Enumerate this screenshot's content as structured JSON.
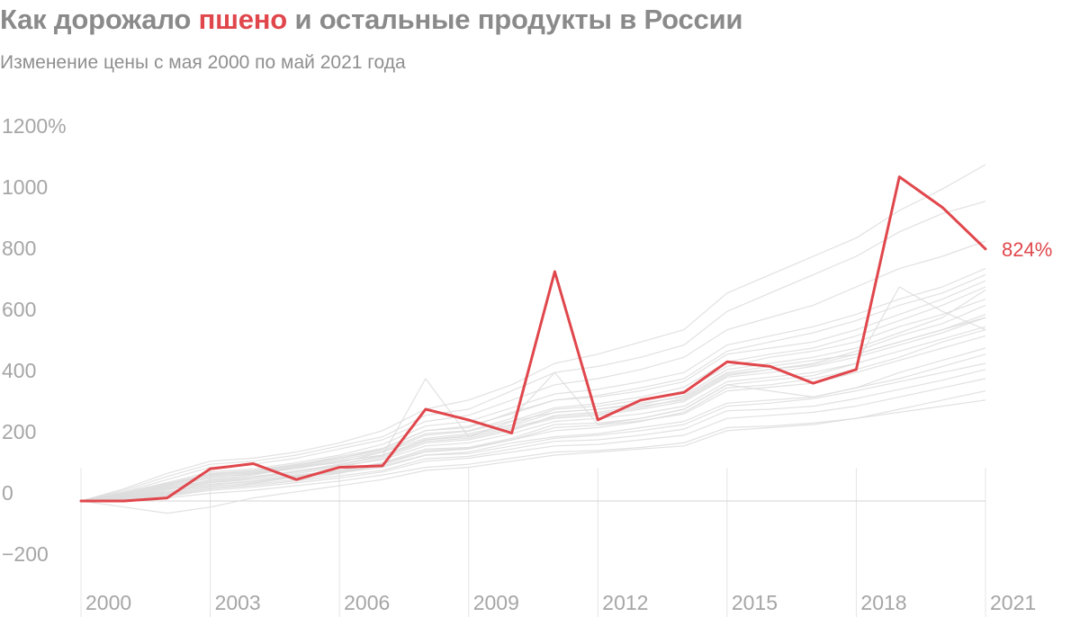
{
  "title": {
    "part1": "Как дорожало ",
    "highlight": "пшено",
    "part2": " и остальные продукты в России"
  },
  "subtitle": "Изменение цены с мая 2000 по май 2021 года",
  "colors": {
    "highlight": "#e0474c",
    "background_lines": "#dcdcdc",
    "axis_text": "#a6a6a6",
    "title": "#8a8a8a",
    "gridlines": "#e4e4e4"
  },
  "chart_data": {
    "type": "line",
    "title": "Как дорожало пшено и остальные продукты в России",
    "subtitle": "Изменение цены с мая 2000 по май 2021 года",
    "xlabel": "",
    "ylabel": "",
    "x": [
      2000,
      2001,
      2002,
      2003,
      2004,
      2005,
      2006,
      2007,
      2008,
      2009,
      2010,
      2011,
      2012,
      2013,
      2014,
      2015,
      2016,
      2017,
      2018,
      2019,
      2020,
      2021
    ],
    "xlim": [
      2000,
      2021
    ],
    "ylim": [
      -300,
      1200
    ],
    "y_ticks": [
      {
        "value": 1200,
        "label": "1200%"
      },
      {
        "value": 1000,
        "label": "1000"
      },
      {
        "value": 800,
        "label": "800"
      },
      {
        "value": 600,
        "label": "600"
      },
      {
        "value": 400,
        "label": "400"
      },
      {
        "value": 200,
        "label": "200"
      },
      {
        "value": 0,
        "label": "0"
      },
      {
        "value": -200,
        "label": "−200"
      }
    ],
    "x_ticks": [
      {
        "value": 2000,
        "label": "2000"
      },
      {
        "value": 2003,
        "label": "2003"
      },
      {
        "value": 2006,
        "label": "2006"
      },
      {
        "value": 2009,
        "label": "2009"
      },
      {
        "value": 2012,
        "label": "2012"
      },
      {
        "value": 2015,
        "label": "2015"
      },
      {
        "value": 2018,
        "label": "2018"
      },
      {
        "value": 2021,
        "label": "2021"
      }
    ],
    "highlight_series": {
      "name": "пшено",
      "values": [
        0,
        0,
        10,
        105,
        122,
        70,
        110,
        115,
        300,
        265,
        222,
        750,
        265,
        330,
        355,
        455,
        440,
        385,
        430,
        1060,
        960,
        824
      ],
      "end_label": "824%"
    },
    "background_series": [
      {
        "values": [
          0,
          10,
          35,
          70,
          85,
          110,
          130,
          150,
          200,
          210,
          260,
          290,
          300,
          320,
          340,
          420,
          440,
          460,
          480,
          520,
          560,
          600
        ]
      },
      {
        "values": [
          0,
          15,
          40,
          60,
          70,
          90,
          110,
          140,
          190,
          200,
          230,
          280,
          290,
          310,
          330,
          410,
          430,
          450,
          490,
          540,
          580,
          640
        ]
      },
      {
        "values": [
          0,
          5,
          20,
          40,
          55,
          70,
          90,
          120,
          160,
          170,
          200,
          230,
          240,
          260,
          290,
          370,
          380,
          400,
          430,
          470,
          520,
          560
        ]
      },
      {
        "values": [
          0,
          20,
          50,
          90,
          100,
          120,
          140,
          170,
          230,
          240,
          290,
          330,
          340,
          360,
          390,
          480,
          500,
          520,
          560,
          610,
          660,
          720
        ]
      },
      {
        "values": [
          0,
          8,
          25,
          45,
          60,
          80,
          95,
          115,
          150,
          160,
          190,
          210,
          220,
          240,
          260,
          320,
          330,
          340,
          370,
          400,
          440,
          480
        ]
      },
      {
        "values": [
          0,
          30,
          70,
          110,
          120,
          140,
          170,
          200,
          260,
          280,
          330,
          380,
          400,
          430,
          470,
          560,
          600,
          640,
          700,
          760,
          800,
          850
        ]
      },
      {
        "values": [
          0,
          40,
          90,
          130,
          140,
          160,
          190,
          230,
          300,
          330,
          380,
          450,
          480,
          520,
          560,
          680,
          740,
          800,
          860,
          950,
          1020,
          1100
        ]
      },
      {
        "values": [
          0,
          35,
          80,
          120,
          130,
          150,
          180,
          210,
          280,
          300,
          360,
          420,
          440,
          470,
          510,
          620,
          680,
          740,
          800,
          880,
          940,
          980
        ]
      },
      {
        "values": [
          0,
          -20,
          -40,
          -20,
          10,
          30,
          50,
          70,
          100,
          110,
          130,
          150,
          160,
          170,
          180,
          230,
          240,
          250,
          270,
          290,
          310,
          330
        ]
      },
      {
        "values": [
          0,
          12,
          30,
          55,
          65,
          85,
          100,
          125,
          170,
          175,
          205,
          250,
          255,
          270,
          300,
          380,
          395,
          410,
          450,
          490,
          530,
          570
        ]
      },
      {
        "values": [
          0,
          18,
          45,
          75,
          90,
          110,
          125,
          160,
          205,
          220,
          250,
          300,
          310,
          330,
          360,
          440,
          470,
          490,
          520,
          570,
          610,
          660
        ]
      },
      {
        "values": [
          0,
          6,
          15,
          35,
          45,
          60,
          75,
          95,
          130,
          140,
          160,
          180,
          185,
          200,
          215,
          270,
          280,
          290,
          310,
          340,
          370,
          400
        ]
      },
      {
        "values": [
          0,
          25,
          55,
          85,
          95,
          115,
          140,
          165,
          220,
          230,
          270,
          420,
          250,
          270,
          300,
          380,
          360,
          340,
          370,
          420,
          460,
          500
        ]
      },
      {
        "values": [
          0,
          10,
          30,
          60,
          75,
          95,
          115,
          135,
          180,
          190,
          220,
          260,
          270,
          285,
          310,
          390,
          405,
          420,
          450,
          700,
          620,
          560
        ]
      },
      {
        "values": [
          0,
          22,
          48,
          78,
          88,
          105,
          130,
          150,
          200,
          215,
          245,
          290,
          300,
          315,
          345,
          430,
          450,
          470,
          500,
          550,
          600,
          690
        ]
      },
      {
        "values": [
          0,
          3,
          10,
          25,
          35,
          50,
          65,
          85,
          110,
          120,
          140,
          160,
          165,
          175,
          190,
          240,
          245,
          255,
          270,
          300,
          330,
          360
        ]
      },
      {
        "values": [
          0,
          14,
          36,
          64,
          76,
          96,
          118,
          145,
          195,
          205,
          235,
          270,
          280,
          300,
          325,
          405,
          420,
          440,
          470,
          510,
          550,
          600
        ]
      },
      {
        "values": [
          0,
          28,
          60,
          95,
          105,
          125,
          150,
          185,
          245,
          260,
          305,
          350,
          365,
          390,
          420,
          510,
          540,
          570,
          610,
          660,
          700,
          760
        ]
      },
      {
        "values": [
          0,
          9,
          22,
          48,
          58,
          78,
          92,
          110,
          150,
          155,
          180,
          205,
          215,
          230,
          250,
          310,
          320,
          335,
          360,
          390,
          420,
          450
        ]
      },
      {
        "values": [
          0,
          16,
          42,
          68,
          80,
          98,
          120,
          148,
          400,
          210,
          240,
          275,
          285,
          305,
          335,
          415,
          430,
          445,
          480,
          520,
          560,
          610
        ]
      },
      {
        "values": [
          0,
          20,
          52,
          82,
          92,
          112,
          135,
          160,
          215,
          228,
          262,
          305,
          318,
          340,
          372,
          455,
          480,
          500,
          540,
          590,
          640,
          700
        ]
      },
      {
        "values": [
          0,
          7,
          18,
          40,
          50,
          66,
          82,
          100,
          138,
          146,
          170,
          195,
          200,
          215,
          235,
          295,
          300,
          310,
          335,
          365,
          395,
          430
        ]
      },
      {
        "values": [
          0,
          24,
          58,
          88,
          98,
          118,
          145,
          172,
          230,
          245,
          285,
          330,
          345,
          370,
          400,
          490,
          520,
          550,
          590,
          640,
          680,
          740
        ]
      },
      {
        "values": [
          0,
          11,
          28,
          52,
          64,
          82,
          98,
          122,
          165,
          172,
          200,
          240,
          248,
          262,
          285,
          360,
          372,
          385,
          420,
          460,
          500,
          540
        ]
      }
    ]
  }
}
